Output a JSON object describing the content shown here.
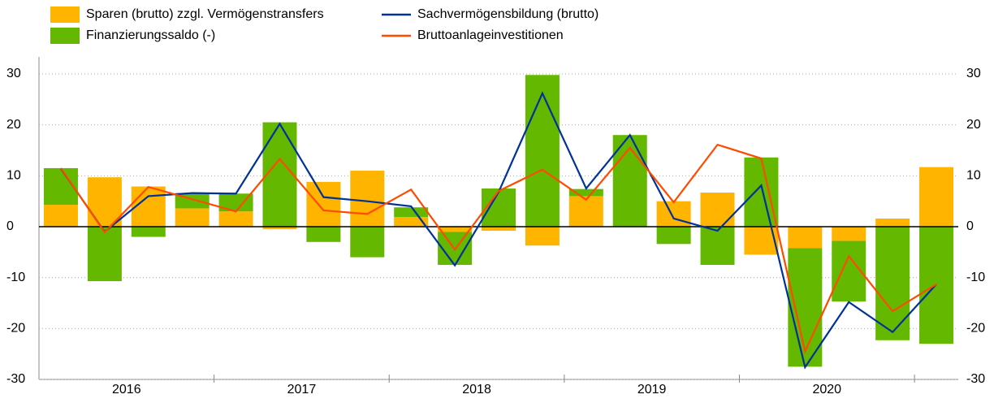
{
  "chart_data": {
    "type": "bar_line",
    "categories": [
      "2016",
      null,
      null,
      null,
      "2017",
      null,
      null,
      null,
      "2018",
      null,
      null,
      null,
      "2019",
      null,
      null,
      null,
      "2020",
      null,
      null,
      null,
      null
    ],
    "series": [
      {
        "name": "Sparen (brutto) zzgl. Vermögenstransfers",
        "kind": "bar",
        "color": "#ffb400",
        "values": [
          4.3,
          9.7,
          7.9,
          3.6,
          3.0,
          -0.5,
          8.8,
          11.0,
          1.9,
          -1.0,
          -0.8,
          -3.7,
          6.0,
          0.0,
          5.0,
          6.7,
          -5.5,
          -4.2,
          -2.8,
          1.6,
          11.7
        ]
      },
      {
        "name": "Finanzierungssaldo (-)",
        "kind": "bar",
        "color": "#65b800",
        "values": [
          7.2,
          -10.7,
          -2.0,
          3.0,
          3.5,
          20.5,
          -3.0,
          -6.0,
          1.9,
          -6.5,
          7.5,
          29.8,
          1.4,
          18.0,
          -3.4,
          -7.5,
          13.6,
          -23.3,
          -11.9,
          -22.3,
          -23.0
        ]
      },
      {
        "name": "Sachvermögensbildung (brutto)",
        "kind": "line",
        "color": "#003299",
        "values": [
          11.4,
          -1.0,
          6.0,
          6.6,
          6.5,
          20.2,
          5.8,
          5.0,
          4.0,
          -7.6,
          6.8,
          26.2,
          7.5,
          18.0,
          1.6,
          -0.8,
          8.1,
          -27.6,
          -14.8,
          -20.7,
          -11.3
        ]
      },
      {
        "name": "Bruttoanlageinvestitionen",
        "kind": "line",
        "color": "#ff4b00",
        "values": [
          11.5,
          -1.1,
          7.8,
          5.4,
          3.0,
          13.3,
          3.2,
          2.5,
          7.3,
          -4.5,
          7.0,
          11.2,
          5.3,
          15.5,
          4.8,
          16.1,
          13.4,
          -24.5,
          -5.8,
          -16.6,
          -11.3
        ]
      }
    ],
    "ylim": [
      -30,
      30
    ],
    "yticks": [
      -30,
      -20,
      -10,
      0,
      10,
      20,
      30
    ],
    "right_axis": true
  }
}
